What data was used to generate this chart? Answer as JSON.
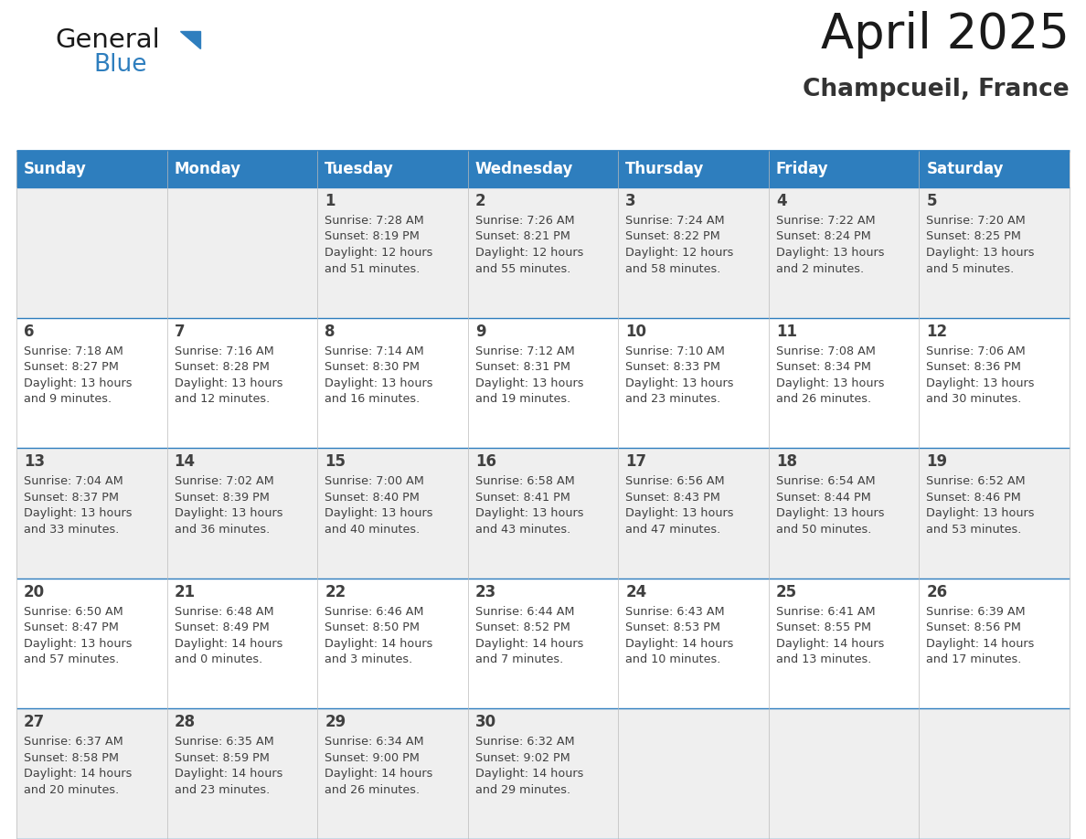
{
  "title": "April 2025",
  "subtitle": "Champcueil, France",
  "days_of_week": [
    "Sunday",
    "Monday",
    "Tuesday",
    "Wednesday",
    "Thursday",
    "Friday",
    "Saturday"
  ],
  "header_bg": "#2E7EBE",
  "header_text_color": "#FFFFFF",
  "row_bg_odd": "#EFEFEF",
  "row_bg_even": "#FFFFFF",
  "border_color": "#2E7EBE",
  "text_color": "#404040",
  "calendar_data": [
    [
      {
        "day": "",
        "sunrise": "",
        "sunset": "",
        "daylight": ""
      },
      {
        "day": "",
        "sunrise": "",
        "sunset": "",
        "daylight": ""
      },
      {
        "day": "1",
        "sunrise": "7:28 AM",
        "sunset": "8:19 PM",
        "daylight": "12 hours and 51 minutes."
      },
      {
        "day": "2",
        "sunrise": "7:26 AM",
        "sunset": "8:21 PM",
        "daylight": "12 hours and 55 minutes."
      },
      {
        "day": "3",
        "sunrise": "7:24 AM",
        "sunset": "8:22 PM",
        "daylight": "12 hours and 58 minutes."
      },
      {
        "day": "4",
        "sunrise": "7:22 AM",
        "sunset": "8:24 PM",
        "daylight": "13 hours and 2 minutes."
      },
      {
        "day": "5",
        "sunrise": "7:20 AM",
        "sunset": "8:25 PM",
        "daylight": "13 hours and 5 minutes."
      }
    ],
    [
      {
        "day": "6",
        "sunrise": "7:18 AM",
        "sunset": "8:27 PM",
        "daylight": "13 hours and 9 minutes."
      },
      {
        "day": "7",
        "sunrise": "7:16 AM",
        "sunset": "8:28 PM",
        "daylight": "13 hours and 12 minutes."
      },
      {
        "day": "8",
        "sunrise": "7:14 AM",
        "sunset": "8:30 PM",
        "daylight": "13 hours and 16 minutes."
      },
      {
        "day": "9",
        "sunrise": "7:12 AM",
        "sunset": "8:31 PM",
        "daylight": "13 hours and 19 minutes."
      },
      {
        "day": "10",
        "sunrise": "7:10 AM",
        "sunset": "8:33 PM",
        "daylight": "13 hours and 23 minutes."
      },
      {
        "day": "11",
        "sunrise": "7:08 AM",
        "sunset": "8:34 PM",
        "daylight": "13 hours and 26 minutes."
      },
      {
        "day": "12",
        "sunrise": "7:06 AM",
        "sunset": "8:36 PM",
        "daylight": "13 hours and 30 minutes."
      }
    ],
    [
      {
        "day": "13",
        "sunrise": "7:04 AM",
        "sunset": "8:37 PM",
        "daylight": "13 hours and 33 minutes."
      },
      {
        "day": "14",
        "sunrise": "7:02 AM",
        "sunset": "8:39 PM",
        "daylight": "13 hours and 36 minutes."
      },
      {
        "day": "15",
        "sunrise": "7:00 AM",
        "sunset": "8:40 PM",
        "daylight": "13 hours and 40 minutes."
      },
      {
        "day": "16",
        "sunrise": "6:58 AM",
        "sunset": "8:41 PM",
        "daylight": "13 hours and 43 minutes."
      },
      {
        "day": "17",
        "sunrise": "6:56 AM",
        "sunset": "8:43 PM",
        "daylight": "13 hours and 47 minutes."
      },
      {
        "day": "18",
        "sunrise": "6:54 AM",
        "sunset": "8:44 PM",
        "daylight": "13 hours and 50 minutes."
      },
      {
        "day": "19",
        "sunrise": "6:52 AM",
        "sunset": "8:46 PM",
        "daylight": "13 hours and 53 minutes."
      }
    ],
    [
      {
        "day": "20",
        "sunrise": "6:50 AM",
        "sunset": "8:47 PM",
        "daylight": "13 hours and 57 minutes."
      },
      {
        "day": "21",
        "sunrise": "6:48 AM",
        "sunset": "8:49 PM",
        "daylight": "14 hours and 0 minutes."
      },
      {
        "day": "22",
        "sunrise": "6:46 AM",
        "sunset": "8:50 PM",
        "daylight": "14 hours and 3 minutes."
      },
      {
        "day": "23",
        "sunrise": "6:44 AM",
        "sunset": "8:52 PM",
        "daylight": "14 hours and 7 minutes."
      },
      {
        "day": "24",
        "sunrise": "6:43 AM",
        "sunset": "8:53 PM",
        "daylight": "14 hours and 10 minutes."
      },
      {
        "day": "25",
        "sunrise": "6:41 AM",
        "sunset": "8:55 PM",
        "daylight": "14 hours and 13 minutes."
      },
      {
        "day": "26",
        "sunrise": "6:39 AM",
        "sunset": "8:56 PM",
        "daylight": "14 hours and 17 minutes."
      }
    ],
    [
      {
        "day": "27",
        "sunrise": "6:37 AM",
        "sunset": "8:58 PM",
        "daylight": "14 hours and 20 minutes."
      },
      {
        "day": "28",
        "sunrise": "6:35 AM",
        "sunset": "8:59 PM",
        "daylight": "14 hours and 23 minutes."
      },
      {
        "day": "29",
        "sunrise": "6:34 AM",
        "sunset": "9:00 PM",
        "daylight": "14 hours and 26 minutes."
      },
      {
        "day": "30",
        "sunrise": "6:32 AM",
        "sunset": "9:02 PM",
        "daylight": "14 hours and 29 minutes."
      },
      {
        "day": "",
        "sunrise": "",
        "sunset": "",
        "daylight": ""
      },
      {
        "day": "",
        "sunrise": "",
        "sunset": "",
        "daylight": ""
      },
      {
        "day": "",
        "sunrise": "",
        "sunset": "",
        "daylight": ""
      }
    ]
  ],
  "title_fontsize": 38,
  "subtitle_fontsize": 19,
  "header_fontsize": 12,
  "day_num_fontsize": 12,
  "cell_fontsize": 9.2,
  "logo_general_fontsize": 21,
  "logo_blue_fontsize": 19
}
